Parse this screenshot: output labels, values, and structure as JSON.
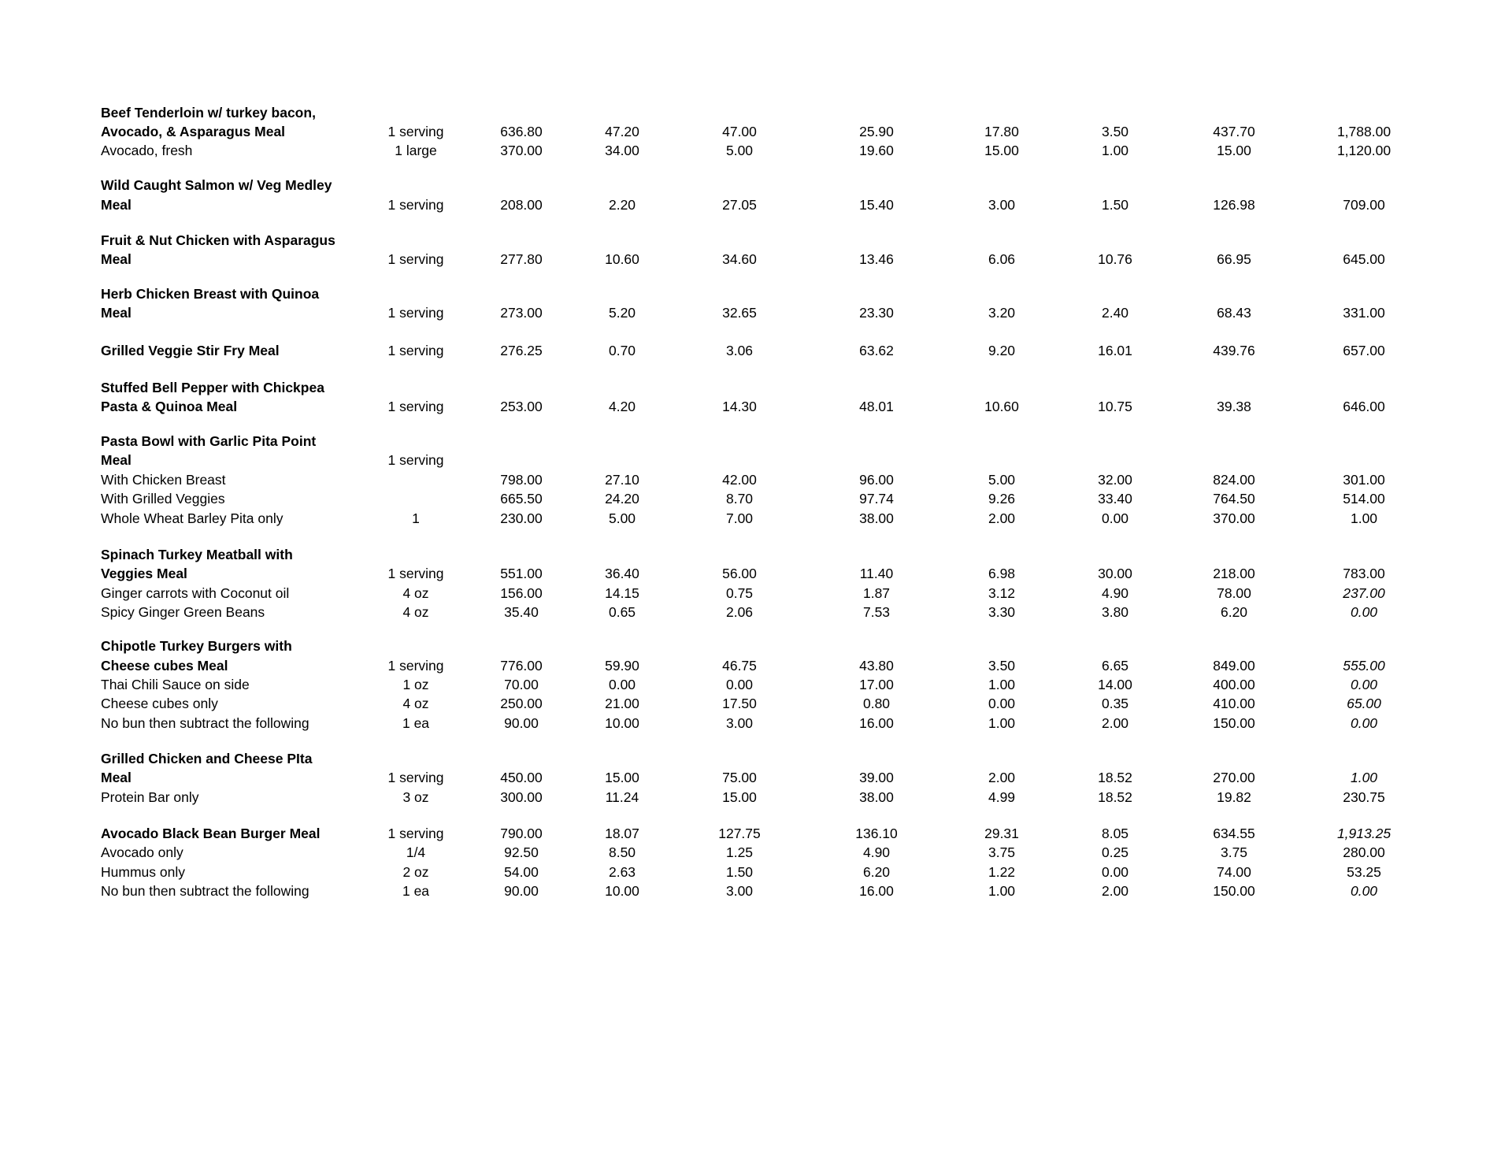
{
  "groups": [
    {
      "rows": [
        {
          "name": "Beef Tenderloin w/ turkey bacon,",
          "bold": true
        },
        {
          "name": "Avocado, & Asparagus Meal",
          "bold": true,
          "qty": "1 serving",
          "values": [
            "636.80",
            "47.20",
            "47.00",
            "25.90",
            "17.80",
            "3.50",
            "437.70",
            "1,788.00"
          ]
        },
        {
          "name": "Avocado, fresh",
          "qty": "1 large",
          "values": [
            "370.00",
            "34.00",
            "5.00",
            "19.60",
            "15.00",
            "1.00",
            "15.00",
            "1,120.00"
          ]
        }
      ]
    },
    {
      "rows": [
        {
          "name": "Wild Caught Salmon w/ Veg Medley",
          "bold": true
        },
        {
          "name": "Meal",
          "bold": true,
          "qty": "1 serving",
          "values": [
            "208.00",
            "2.20",
            "27.05",
            "15.40",
            "3.00",
            "1.50",
            "126.98",
            "709.00"
          ]
        }
      ]
    },
    {
      "rows": [
        {
          "name": "Fruit & Nut Chicken with Asparagus",
          "bold": true
        },
        {
          "name": "Meal",
          "bold": true,
          "qty": "1 serving",
          "values": [
            "277.80",
            "10.60",
            "34.60",
            "13.46",
            "6.06",
            "10.76",
            "66.95",
            "645.00"
          ]
        }
      ]
    },
    {
      "rows": [
        {
          "name": "Herb Chicken Breast with Quinoa",
          "bold": true
        },
        {
          "name": "Meal",
          "bold": true,
          "qty": "1 serving",
          "values": [
            "273.00",
            "5.20",
            "32.65",
            "23.30",
            "3.20",
            "2.40",
            "68.43",
            "331.00"
          ]
        }
      ]
    },
    {
      "rows": [
        {
          "name": "Grilled Veggie Stir Fry Meal",
          "bold": true,
          "qty": "1 serving",
          "values": [
            "276.25",
            "0.70",
            "3.06",
            "63.62",
            "9.20",
            "16.01",
            "439.76",
            "657.00"
          ]
        }
      ]
    },
    {
      "rows": [
        {
          "name": "Stuffed Bell Pepper with Chickpea",
          "bold": true
        },
        {
          "name": "Pasta & Quinoa Meal",
          "bold": true,
          "qty": "1 serving",
          "values": [
            "253.00",
            "4.20",
            "14.30",
            "48.01",
            "10.60",
            "10.75",
            "39.38",
            "646.00"
          ]
        }
      ]
    },
    {
      "rows": [
        {
          "name": "Pasta Bowl with Garlic Pita Point",
          "bold": true
        },
        {
          "name": "Meal",
          "bold": true,
          "qty": "1 serving"
        },
        {
          "name": "With Chicken Breast",
          "values": [
            "798.00",
            "27.10",
            "42.00",
            "96.00",
            "5.00",
            "32.00",
            "824.00",
            "301.00"
          ]
        },
        {
          "name": "With Grilled Veggies",
          "values": [
            "665.50",
            "24.20",
            "8.70",
            "97.74",
            "9.26",
            "33.40",
            "764.50",
            "514.00"
          ]
        },
        {
          "name": "Whole Wheat Barley Pita only",
          "qty": "1",
          "values": [
            "230.00",
            "5.00",
            "7.00",
            "38.00",
            "2.00",
            "0.00",
            "370.00",
            "1.00"
          ]
        }
      ]
    },
    {
      "rows": [
        {
          "name": "Spinach Turkey Meatball with",
          "bold": true
        },
        {
          "name": "Veggies Meal",
          "bold": true,
          "qty": "1 serving",
          "values": [
            "551.00",
            "36.40",
            "56.00",
            "11.40",
            "6.98",
            "30.00",
            "218.00",
            "783.00"
          ]
        },
        {
          "name": "Ginger carrots with Coconut oil",
          "qty": "4 oz",
          "values": [
            "156.00",
            "14.15",
            "0.75",
            "1.87",
            "3.12",
            "4.90",
            "78.00",
            "237.00"
          ],
          "last_italic": true
        },
        {
          "name": "Spicy Ginger Green Beans",
          "qty": "4 oz",
          "values": [
            "35.40",
            "0.65",
            "2.06",
            "7.53",
            "3.30",
            "3.80",
            "6.20",
            "0.00"
          ],
          "last_italic": true
        }
      ]
    },
    {
      "rows": [
        {
          "name": "Chipotle Turkey Burgers with",
          "bold": true
        },
        {
          "name": "Cheese cubes Meal",
          "bold": true,
          "qty": "1 serving",
          "values": [
            "776.00",
            "59.90",
            "46.75",
            "43.80",
            "3.50",
            "6.65",
            "849.00",
            "555.00"
          ],
          "last_italic": true
        },
        {
          "name": "Thai Chili Sauce on side",
          "qty": "1 oz",
          "values": [
            "70.00",
            "0.00",
            "0.00",
            "17.00",
            "1.00",
            "14.00",
            "400.00",
            "0.00"
          ],
          "last_italic": true
        },
        {
          "name": "Cheese cubes only",
          "qty": "4 oz",
          "values": [
            "250.00",
            "21.00",
            "17.50",
            "0.80",
            "0.00",
            "0.35",
            "410.00",
            "65.00"
          ],
          "last_italic": true
        },
        {
          "name": "No bun then subtract the following",
          "qty": "1 ea",
          "values": [
            "90.00",
            "10.00",
            "3.00",
            "16.00",
            "1.00",
            "2.00",
            "150.00",
            "0.00"
          ],
          "last_italic": true
        }
      ]
    },
    {
      "rows": [
        {
          "name": "Grilled Chicken and Cheese PIta",
          "bold": true
        },
        {
          "name": "Meal",
          "bold": true,
          "qty": "1 serving",
          "values": [
            "450.00",
            "15.00",
            "75.00",
            "39.00",
            "2.00",
            "18.52",
            "270.00",
            "1.00"
          ],
          "last_italic": true
        },
        {
          "name": "Protein Bar only",
          "qty": "3 oz",
          "values": [
            "300.00",
            "11.24",
            "15.00",
            "38.00",
            "4.99",
            "18.52",
            "19.82",
            "230.75"
          ]
        }
      ]
    },
    {
      "rows": [
        {
          "name": "Avocado Black Bean Burger Meal",
          "bold": true,
          "qty": "1 serving",
          "values": [
            "790.00",
            "18.07",
            "127.75",
            "136.10",
            "29.31",
            "8.05",
            "634.55",
            "1,913.25"
          ],
          "last_italic": true
        },
        {
          "name": "Avocado only",
          "qty": "1/4",
          "values": [
            "92.50",
            "8.50",
            "1.25",
            "4.90",
            "3.75",
            "0.25",
            "3.75",
            "280.00"
          ]
        },
        {
          "name": "Hummus only",
          "qty": "2 oz",
          "values": [
            "54.00",
            "2.63",
            "1.50",
            "6.20",
            "1.22",
            "0.00",
            "74.00",
            "53.25"
          ]
        },
        {
          "name": "No bun then subtract the following",
          "qty": "1 ea",
          "values": [
            "90.00",
            "10.00",
            "3.00",
            "16.00",
            "1.00",
            "2.00",
            "150.00",
            "0.00"
          ],
          "last_italic": true
        }
      ]
    }
  ]
}
